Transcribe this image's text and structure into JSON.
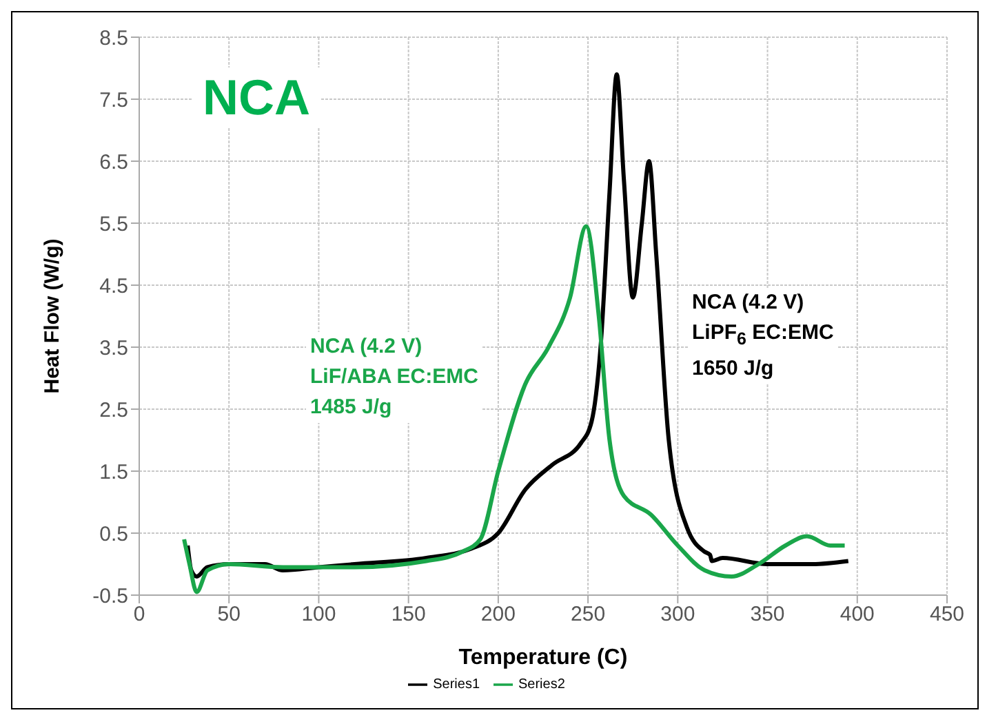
{
  "chart_data": {
    "type": "line",
    "title": "NCA",
    "xlabel": "Temperature (C)",
    "ylabel": "Heat Flow (W/g)",
    "xlim": [
      0,
      450
    ],
    "xticks": [
      0,
      50,
      100,
      150,
      200,
      250,
      300,
      350,
      400,
      450
    ],
    "ylim": [
      -0.5,
      8.5
    ],
    "yticks": [
      -0.5,
      0.5,
      1.5,
      2.5,
      3.5,
      4.5,
      5.5,
      6.5,
      7.5,
      8.5
    ],
    "grid": true,
    "legend": "bottom",
    "marker": "none",
    "line_style": "solid",
    "annotations": [
      "NCA (4.2 V)\nLiF/ABA EC:EMC\n1485 J/g",
      "NCA (4.2 V)\nLiPF$_{6}$ EC:EMC\n1650 J/g"
    ],
    "series": [
      {
        "name": "Series1",
        "color": "#000000",
        "x": [
          27,
          29,
          32,
          38,
          50,
          70,
          80,
          100,
          120,
          160,
          185,
          200,
          215,
          230,
          246,
          252,
          257,
          262,
          266,
          270,
          275,
          280,
          284,
          288,
          295,
          305,
          315,
          318,
          319,
          325,
          350,
          375,
          395
        ],
        "values": [
          0.3,
          -0.1,
          -0.2,
          -0.05,
          0,
          0,
          -0.1,
          -0.05,
          0,
          0.1,
          0.25,
          0.5,
          1.2,
          1.6,
          1.95,
          2.3,
          3.5,
          6,
          7.9,
          6.2,
          4.3,
          5.5,
          6.5,
          5,
          2,
          0.6,
          0.2,
          0.15,
          0.05,
          0.1,
          0,
          0,
          0.05
        ]
      },
      {
        "name": "Series2",
        "color": "#1aa64a",
        "x": [
          25,
          28,
          32,
          38,
          50,
          80,
          120,
          160,
          180,
          190,
          200,
          215,
          228,
          240,
          249,
          256,
          262,
          270,
          285,
          300,
          315,
          330,
          345,
          360,
          372,
          385,
          393
        ],
        "values": [
          0.4,
          0,
          -0.45,
          -0.1,
          0,
          -0.05,
          -0.05,
          0.05,
          0.2,
          0.4,
          1.5,
          2.9,
          3.5,
          4.3,
          5.45,
          4,
          2,
          1.1,
          0.8,
          0.3,
          -0.1,
          -0.2,
          0,
          0.3,
          0.45,
          0.3,
          0.3
        ]
      }
    ]
  }
}
